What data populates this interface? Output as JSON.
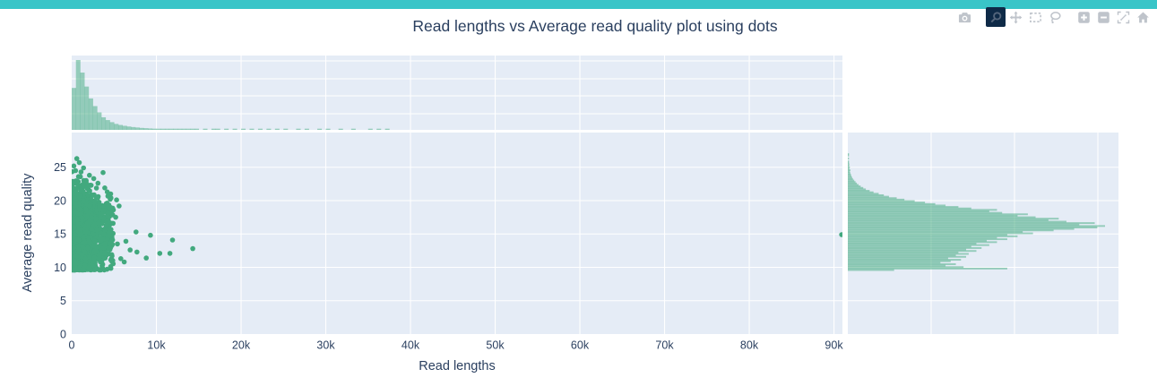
{
  "page": {
    "topbar_color": "#39c5c8",
    "background": "#ffffff"
  },
  "title": "Read lengths vs Average read quality plot using dots",
  "modebar": {
    "icon_color": "#bfc4cb",
    "active_bg": "#0e2a47",
    "active_icon_color": "#54657b",
    "buttons": [
      {
        "id": "download-png",
        "icon": "camera-icon",
        "active": false
      },
      {
        "id": "zoom",
        "icon": "magnifier-icon",
        "active": true
      },
      {
        "id": "pan",
        "icon": "pan-arrows-icon",
        "active": false
      },
      {
        "id": "box-select",
        "icon": "dashed-box-icon",
        "active": false
      },
      {
        "id": "lasso-select",
        "icon": "lasso-icon",
        "active": false
      },
      {
        "id": "zoom-in",
        "icon": "plus-square-icon",
        "active": false
      },
      {
        "id": "zoom-out",
        "icon": "minus-square-icon",
        "active": false
      },
      {
        "id": "autoscale",
        "icon": "autoscale-icon",
        "active": false
      },
      {
        "id": "reset-axes",
        "icon": "home-icon",
        "active": false
      }
    ]
  },
  "chart_data": {
    "type": "scatter",
    "title": "Read lengths vs Average read quality plot using dots",
    "xlabel": "Read lengths",
    "ylabel": "Average read quality",
    "x_tick_labels": [
      "0",
      "10k",
      "20k",
      "30k",
      "40k",
      "50k",
      "60k",
      "70k",
      "80k",
      "90k"
    ],
    "x_tick_values": [
      0,
      10000,
      20000,
      30000,
      40000,
      50000,
      60000,
      70000,
      80000,
      90000
    ],
    "y_tick_values": [
      0,
      5,
      10,
      15,
      20,
      25
    ],
    "xlim": [
      0,
      91000
    ],
    "ylim": [
      0,
      30.2
    ],
    "grid": true,
    "legend": "none",
    "colors": {
      "dot": "#42a97e",
      "hist": "rgba(66,169,126,0.5)",
      "panel_bg": "#e5ecf6",
      "grid": "#ffffff",
      "text": "#2a3f5f"
    },
    "scatter": {
      "description": "Dense cluster of reads: lengths mostly 0-5k, quality 9.6-24, plus sparse outliers",
      "cluster": {
        "n": 1700,
        "seed": 7,
        "x_exp_scale": 1300,
        "x_uniform_frac": 0.15,
        "x_max": 4950,
        "y_mean": 15.2,
        "y_sd": 3.2,
        "y_min": 9.6,
        "envelope_start": 24.6,
        "envelope_slope_per_1k": 0.9
      },
      "outliers": [
        [
          250,
          25.2
        ],
        [
          600,
          26.3
        ],
        [
          900,
          25.7
        ],
        [
          450,
          24.5
        ],
        [
          800,
          23.6
        ],
        [
          1100,
          24.3
        ],
        [
          1400,
          24.9
        ],
        [
          1700,
          23.0
        ],
        [
          2100,
          23.8
        ],
        [
          2300,
          22.3
        ],
        [
          2600,
          23.3
        ],
        [
          3100,
          22.6
        ],
        [
          3700,
          24.2
        ],
        [
          3900,
          21.9
        ],
        [
          4200,
          21.3
        ],
        [
          4600,
          21.0
        ],
        [
          5300,
          20.1
        ],
        [
          5200,
          17.5
        ],
        [
          5600,
          19.2
        ],
        [
          5400,
          13.5
        ],
        [
          5800,
          11.3
        ],
        [
          6200,
          10.8
        ],
        [
          6400,
          13.9
        ],
        [
          6900,
          12.6
        ],
        [
          7600,
          15.3
        ],
        [
          7700,
          12.3
        ],
        [
          8800,
          11.4
        ],
        [
          9300,
          14.8
        ],
        [
          10400,
          12.1
        ],
        [
          11600,
          12.1
        ],
        [
          11900,
          14.1
        ],
        [
          14300,
          12.8
        ],
        [
          90900,
          14.9
        ]
      ]
    },
    "marginal_top": {
      "type": "histogram",
      "axis": "read length",
      "bin_start": 0,
      "bin_width": 500,
      "values_normalized": [
        0.6,
        1.0,
        0.82,
        0.62,
        0.45,
        0.34,
        0.25,
        0.18,
        0.14,
        0.11,
        0.085,
        0.07,
        0.058,
        0.048,
        0.04,
        0.034,
        0.028,
        0.024,
        0.02,
        0.017,
        0.015,
        0.013,
        0.011,
        0.01,
        0.009,
        0.008,
        0.007,
        0.006,
        0.006,
        0.005,
        0,
        0.005,
        0,
        0.004,
        0.004,
        0,
        0.004,
        0,
        0.003,
        0,
        0.003,
        0,
        0.003,
        0,
        0.003,
        0,
        0.003,
        0,
        0.002,
        0,
        0.002,
        0,
        0,
        0.002,
        0,
        0.002,
        0,
        0,
        0.002,
        0,
        0.002,
        0,
        0,
        0.002,
        0,
        0,
        0.002,
        0,
        0,
        0,
        0.002,
        0,
        0.002,
        0,
        0.002,
        0,
        0,
        0,
        0,
        0
      ]
    },
    "marginal_right": {
      "type": "histogram",
      "axis": "average read quality",
      "bin_start": 9.5,
      "bin_width": 0.22,
      "values_normalized": [
        0.18,
        0.62,
        0.45,
        0.38,
        0.42,
        0.36,
        0.4,
        0.44,
        0.39,
        0.46,
        0.42,
        0.47,
        0.43,
        0.5,
        0.46,
        0.52,
        0.48,
        0.55,
        0.5,
        0.58,
        0.54,
        0.62,
        0.58,
        0.66,
        0.62,
        0.72,
        0.68,
        0.8,
        0.88,
        0.97,
        1.0,
        0.9,
        0.96,
        0.85,
        0.78,
        0.82,
        0.73,
        0.66,
        0.7,
        0.6,
        0.55,
        0.58,
        0.48,
        0.43,
        0.38,
        0.34,
        0.3,
        0.26,
        0.22,
        0.19,
        0.16,
        0.14,
        0.12,
        0.1,
        0.085,
        0.07,
        0.06,
        0.05,
        0.042,
        0.035,
        0.03,
        0.025,
        0.02,
        0.017,
        0.014,
        0.012,
        0.01,
        0.008,
        0.01,
        0.006,
        0.008,
        0.005,
        0.006,
        0.004,
        0.003,
        0,
        0.004,
        0,
        0.003,
        0.002
      ]
    }
  }
}
